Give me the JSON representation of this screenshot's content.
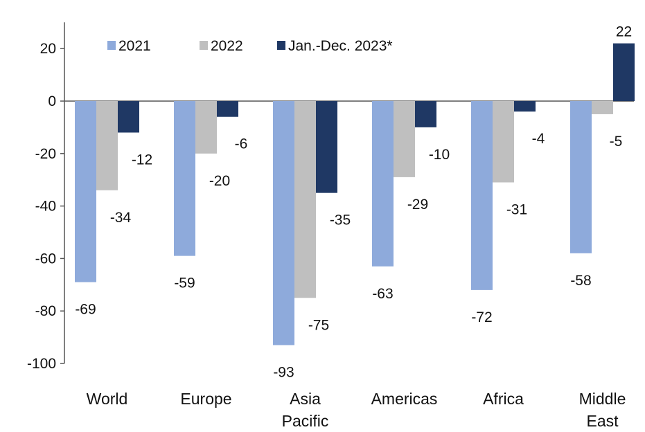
{
  "chart_data": {
    "type": "bar",
    "title": "",
    "xlabel": "",
    "ylabel": "",
    "ylim": [
      -100,
      30
    ],
    "yticks": [
      20,
      0,
      -20,
      -40,
      -60,
      -80,
      -100
    ],
    "categories": [
      [
        "World"
      ],
      [
        "Europe"
      ],
      [
        "Asia",
        "Pacific"
      ],
      [
        "Americas"
      ],
      [
        "Africa"
      ],
      [
        "Middle",
        "East"
      ]
    ],
    "series": [
      {
        "name": "2021",
        "color": "#8eaadb",
        "values": [
          -69,
          -59,
          -93,
          -63,
          -72,
          -58
        ]
      },
      {
        "name": "2022",
        "color": "#bfbfbf",
        "values": [
          -34,
          -20,
          -75,
          -29,
          -31,
          -5
        ]
      },
      {
        "name": "Jan.-Dec. 2023*",
        "color": "#1f3864",
        "values": [
          -12,
          -6,
          -35,
          -10,
          -4,
          22
        ]
      }
    ],
    "grid": false,
    "legend_position": "top-left"
  }
}
